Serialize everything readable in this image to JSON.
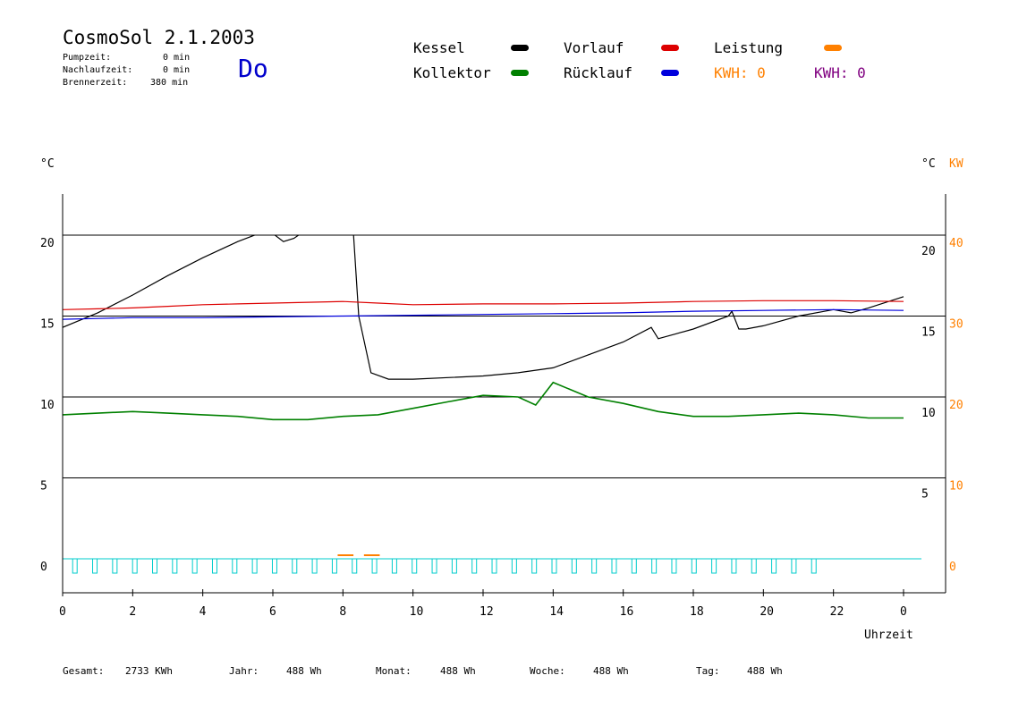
{
  "header": {
    "title": "CosmoSol 2.1.2003",
    "day": "Do",
    "stats": [
      {
        "label": "Pumpzeit:",
        "value": "0 min"
      },
      {
        "label": "Nachlaufzeit:",
        "value": "0 min"
      },
      {
        "label": "Brennerzeit:",
        "value": "380 min"
      }
    ]
  },
  "legend": {
    "items": [
      {
        "label": "Kessel",
        "color": "#000000"
      },
      {
        "label": "Kollektor",
        "color": "#008000"
      },
      {
        "label": "Vorlauf",
        "color": "#dd0000"
      },
      {
        "label": "Rücklauf",
        "color": "#0000dd"
      },
      {
        "label": "Leistung",
        "color": "#ff8000"
      }
    ],
    "kwh": [
      {
        "label": "KWH: 0",
        "color": "#ff8000"
      },
      {
        "label": "KWH: 0",
        "color": "#800080"
      }
    ]
  },
  "chart_data": {
    "type": "line",
    "xlabel": "Uhrzeit",
    "ylabel_left": "°C",
    "ylabel_right": "°C",
    "ylabel_right2": "KW",
    "xlim": [
      0,
      24
    ],
    "ylim": [
      -1.5,
      23
    ],
    "x_ticks": [
      "0",
      "2",
      "4",
      "6",
      "8",
      "10",
      "12",
      "14",
      "16",
      "18",
      "20",
      "22",
      "0"
    ],
    "y_ticks_left": [
      "0",
      "5",
      "10",
      "15",
      "20"
    ],
    "y_ticks_right": [
      "5",
      "10",
      "15",
      "20"
    ],
    "y_ticks_kw": [
      "0",
      "10",
      "20",
      "30",
      "40"
    ],
    "grid": "horizontal",
    "series": [
      {
        "name": "Kessel",
        "color": "#000000",
        "x": [
          0,
          1,
          2,
          3,
          4,
          5,
          5.6,
          6.0,
          6.3,
          6.6,
          6.8,
          8.3,
          8.45,
          8.8,
          9.3,
          10,
          12,
          13,
          14,
          15,
          16,
          16.8,
          17.0,
          17.5,
          18,
          19,
          19.1,
          19.3,
          19.5,
          20,
          21,
          22,
          22.5,
          23,
          24
        ],
        "y": [
          14.3,
          15.2,
          16.3,
          17.5,
          18.6,
          19.6,
          20.1,
          20.1,
          19.6,
          19.8,
          20.1,
          20.1,
          15,
          11.5,
          11.1,
          11.1,
          11.3,
          11.5,
          11.8,
          12.6,
          13.4,
          14.3,
          13.6,
          13.9,
          14.2,
          15.0,
          15.3,
          14.2,
          14.2,
          14.4,
          15.0,
          15.4,
          15.2,
          15.5,
          16.2
        ]
      },
      {
        "name": "Vorlauf",
        "color": "#dd0000",
        "x": [
          0,
          1,
          2,
          3,
          4,
          5,
          6,
          7,
          8,
          9,
          10,
          12,
          14,
          16,
          18,
          20,
          22,
          24
        ],
        "y": [
          15.4,
          15.45,
          15.5,
          15.6,
          15.7,
          15.75,
          15.8,
          15.85,
          15.9,
          15.8,
          15.7,
          15.75,
          15.75,
          15.8,
          15.9,
          15.95,
          15.95,
          15.9
        ]
      },
      {
        "name": "Rücklauf",
        "color": "#0000dd",
        "x": [
          0,
          1,
          2,
          4,
          6,
          8,
          10,
          12,
          14,
          16,
          18,
          20,
          22,
          24
        ],
        "y": [
          14.8,
          14.85,
          14.9,
          14.9,
          14.95,
          15.0,
          15.05,
          15.1,
          15.15,
          15.2,
          15.3,
          15.35,
          15.4,
          15.35
        ]
      },
      {
        "name": "Kollektor",
        "color": "#008000",
        "x": [
          0,
          1,
          2,
          3,
          4,
          5,
          6,
          7,
          8,
          9,
          10,
          11,
          12,
          13,
          13.5,
          14,
          15,
          16,
          17,
          18,
          19,
          20,
          21,
          22,
          23,
          24
        ],
        "y": [
          8.9,
          9.0,
          9.1,
          9.0,
          8.9,
          8.8,
          8.6,
          8.6,
          8.8,
          8.9,
          9.3,
          9.7,
          10.1,
          10.0,
          9.5,
          10.9,
          10.0,
          9.6,
          9.1,
          8.8,
          8.8,
          8.9,
          9.0,
          8.9,
          8.7,
          8.7
        ]
      }
    ]
  },
  "footer": [
    {
      "label": "Gesamt:",
      "value": "2733 KWh"
    },
    {
      "label": "Jahr:",
      "value": "488 Wh"
    },
    {
      "label": "Monat:",
      "value": "488 Wh"
    },
    {
      "label": "Woche:",
      "value": "488 Wh"
    },
    {
      "label": "Tag:",
      "value": "488 Wh"
    }
  ]
}
